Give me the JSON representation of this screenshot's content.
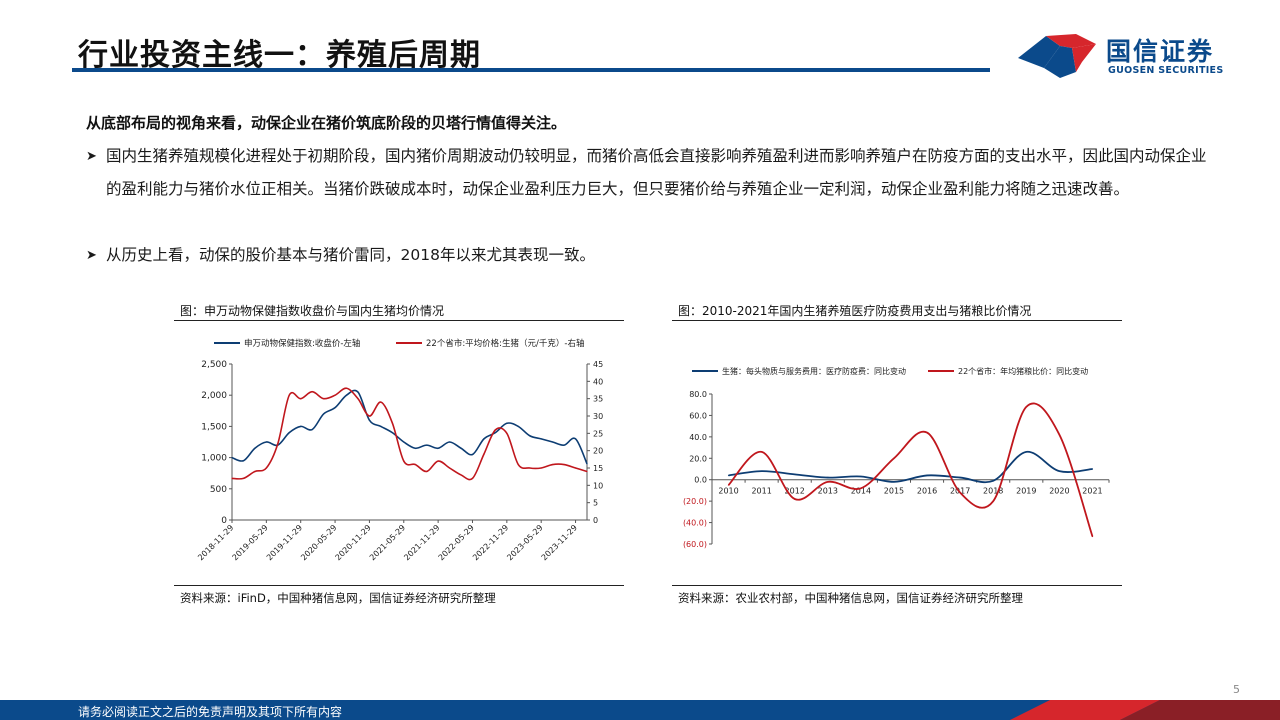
{
  "header": {
    "title": "行业投资主线一：养殖后周期",
    "logo_cn": "国信证券",
    "logo_en": "GUOSEN SECURITIES"
  },
  "body": {
    "lead": "从底部布局的视角来看，动保企业在猪价筑底阶段的贝塔行情值得关注。",
    "bullets": [
      "国内生猪养殖规模化进程处于初期阶段，国内猪价周期波动仍较明显，而猪价高低会直接影响养殖盈利进而影响养殖户在防疫方面的支出水平，因此国内动保企业的盈利能力与猪价水位正相关。当猪价跌破成本时，动保企业盈利压力巨大，但只要猪价给与养殖企业一定利润，动保企业盈利能力将随之迅速改善。",
      "从历史上看，动保的股价基本与猪价雷同，2018年以来尤其表现一致。"
    ],
    "bullet_icon": "arrow-bullet-icon"
  },
  "figures": [
    {
      "title": "图：申万动物保健指数收盘价与国内生猪均价情况",
      "source": "资料来源：iFinD，中国种猪信息网，国信证券经济研究所整理"
    },
    {
      "title": "图：2010-2021年国内生猪养殖医疗防疫费用支出与猪粮比价情况",
      "source": "资料来源：农业农村部，中国种猪信息网，国信证券经济研究所整理"
    }
  ],
  "chart_data": [
    {
      "type": "line",
      "x_dates": [
        "2018-11-29",
        "2019-01-29",
        "2019-03-29",
        "2019-05-29",
        "2019-07-29",
        "2019-09-29",
        "2019-11-29",
        "2020-01-29",
        "2020-03-29",
        "2020-05-29",
        "2020-07-29",
        "2020-09-29",
        "2020-11-29",
        "2021-01-29",
        "2021-03-29",
        "2021-05-29",
        "2021-07-29",
        "2021-09-29",
        "2021-11-29",
        "2022-01-29",
        "2022-03-29",
        "2022-05-29",
        "2022-07-29",
        "2022-09-29",
        "2022-11-29",
        "2023-01-29",
        "2023-03-29",
        "2023-05-29",
        "2023-07-29",
        "2023-09-29",
        "2023-11-29",
        "2024-01-29"
      ],
      "xtick_labels": [
        "2018-11-29",
        "2019-05-29",
        "2019-11-29",
        "2020-05-29",
        "2020-11-29",
        "2021-05-29",
        "2021-11-29",
        "2022-05-29",
        "2022-11-29",
        "2023-05-29",
        "2023-11-29"
      ],
      "series": [
        {
          "name": "申万动物保健指数:收盘价-左轴",
          "axis": "left",
          "color": "#0d3d73",
          "values": [
            1000,
            950,
            1150,
            1250,
            1200,
            1400,
            1500,
            1450,
            1700,
            1800,
            2000,
            2050,
            1600,
            1500,
            1400,
            1250,
            1150,
            1200,
            1150,
            1250,
            1150,
            1050,
            1300,
            1400,
            1550,
            1500,
            1350,
            1300,
            1250,
            1200,
            1300,
            900
          ]
        },
        {
          "name": "22个省市:平均价格:生猪（元/千克）-右轴",
          "axis": "right",
          "color": "#c0171d",
          "values": [
            12,
            12,
            14,
            15,
            22,
            36,
            35,
            37,
            35,
            36,
            38,
            35,
            30,
            34,
            28,
            17,
            16,
            14,
            17,
            15,
            13,
            12,
            19,
            26,
            25,
            16,
            15,
            15,
            16,
            16,
            15,
            14
          ]
        }
      ],
      "y_left": {
        "ticks": [
          0,
          500,
          1000,
          1500,
          2000,
          2500
        ],
        "tick_labels": [
          "0",
          "500",
          "1,000",
          "1,500",
          "2,000",
          "2,500"
        ],
        "ylim": [
          0,
          2500
        ]
      },
      "y_right": {
        "ticks": [
          0,
          5,
          10,
          15,
          20,
          25,
          30,
          35,
          40,
          45
        ],
        "ylim": [
          0,
          45
        ]
      },
      "legend": "top"
    },
    {
      "type": "line",
      "categories": [
        "2010",
        "2011",
        "2012",
        "2013",
        "2014",
        "2015",
        "2016",
        "2017",
        "2018",
        "2019",
        "2020",
        "2021"
      ],
      "series": [
        {
          "name": "生猪：每头物质与服务费用：医疗防疫费：同比变动",
          "color": "#0d3d73",
          "values": [
            4,
            8,
            5,
            2,
            3,
            -2,
            4,
            2,
            -1,
            26,
            8,
            10
          ]
        },
        {
          "name": "22个省市：年均猪粮比价：同比变动",
          "color": "#c0171d",
          "values": [
            -5,
            26,
            -18,
            -2,
            -8,
            20,
            44,
            -12,
            -20,
            68,
            42,
            -53
          ]
        }
      ],
      "y": {
        "ticks": [
          80,
          60,
          40,
          20,
          0,
          -20,
          -40,
          -60
        ],
        "tick_labels": [
          "80.0",
          "60.0",
          "40.0",
          "20.0",
          "0.0",
          "(20.0)",
          "(40.0)",
          "(60.0)"
        ],
        "ylim": [
          -60,
          80
        ]
      },
      "legend": "top"
    }
  ],
  "footer": {
    "disclaimer": "请务必阅读正文之后的免责声明及其项下所有内容",
    "page": "5"
  },
  "colors": {
    "brand": "#0b4a8b",
    "red": "#c0171d",
    "navy": "#0d3d73"
  }
}
